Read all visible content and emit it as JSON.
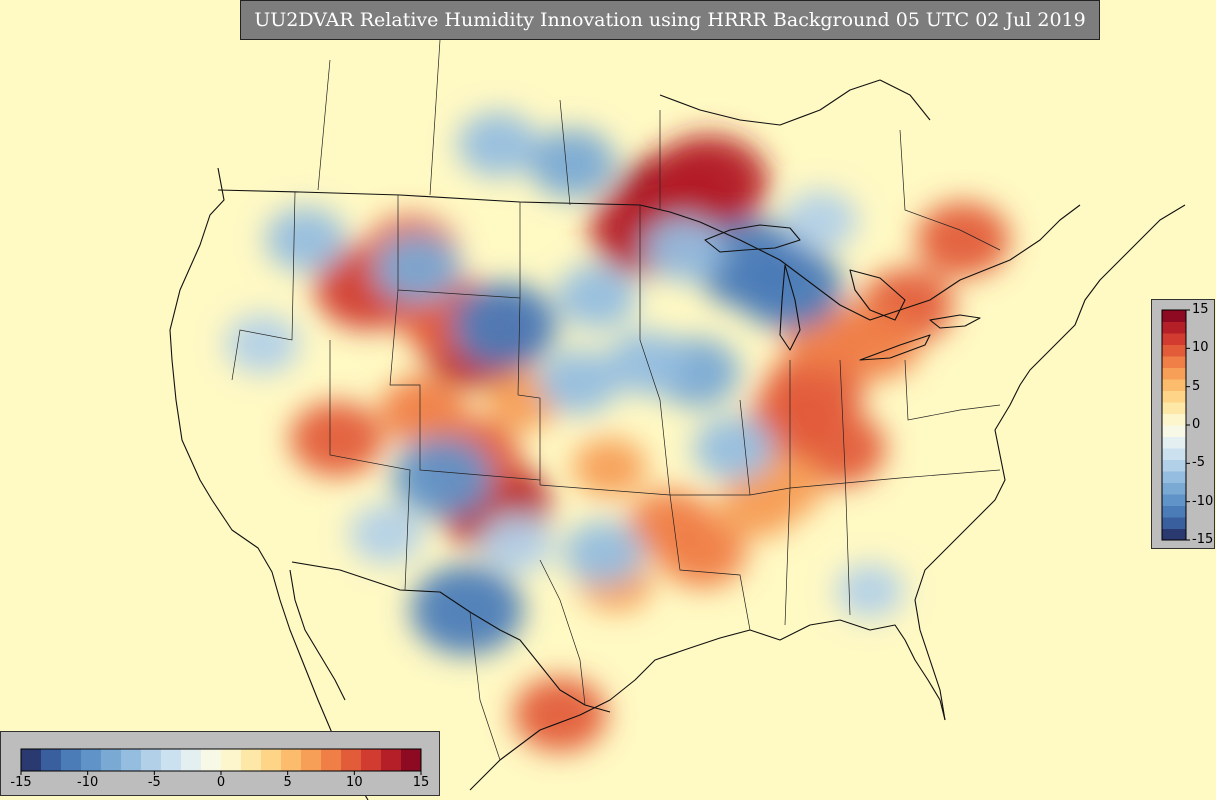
{
  "title": "UU2DVAR Relative Humidity Innovation using HRRR Background 05 UTC 02 Jul 2019",
  "colorbar": {
    "min": -15,
    "max": 15,
    "tick_values": [
      -15,
      -10,
      -5,
      0,
      5,
      10,
      15
    ],
    "tick_labels": [
      "-15",
      "-10",
      "-5",
      "0",
      "5",
      "10",
      "15"
    ],
    "colors": [
      "#2a3970",
      "#3a5f9e",
      "#4c7cb8",
      "#6094c8",
      "#7aa9d4",
      "#95bddf",
      "#b2d0e8",
      "#cce1ef",
      "#e4eff2",
      "#f7f9e6",
      "#fdf6cc",
      "#fde8a8",
      "#fdd488",
      "#fbbc6d",
      "#f79e57",
      "#f07e47",
      "#e35c3a",
      "#d13b30",
      "#b51f28",
      "#8e0a22"
    ]
  },
  "anomalies": [
    {
      "lon": -90.5,
      "lat": 49.5,
      "value": 14
    },
    {
      "lon": -88.0,
      "lat": 50.5,
      "value": 13
    },
    {
      "lon": -93.0,
      "lat": 48.0,
      "value": 12
    },
    {
      "lon": -106.5,
      "lat": 42.2,
      "value": 13
    },
    {
      "lon": -109.0,
      "lat": 43.5,
      "value": 10
    },
    {
      "lon": -115.5,
      "lat": 45.0,
      "value": 11
    },
    {
      "lon": -112.0,
      "lat": 46.8,
      "value": 9
    },
    {
      "lon": -105.3,
      "lat": 33.5,
      "value": 12
    },
    {
      "lon": -107.2,
      "lat": 36.0,
      "value": 10
    },
    {
      "lon": -118.0,
      "lat": 37.0,
      "value": 9
    },
    {
      "lon": -79.5,
      "lat": 39.5,
      "value": 10
    },
    {
      "lon": -81.0,
      "lat": 38.0,
      "value": 9
    },
    {
      "lon": -77.5,
      "lat": 36.5,
      "value": 9
    },
    {
      "lon": -88.5,
      "lat": 31.0,
      "value": 8
    },
    {
      "lon": -91.0,
      "lat": 32.5,
      "value": 8
    },
    {
      "lon": -72.0,
      "lat": 44.0,
      "value": 9
    },
    {
      "lon": -74.5,
      "lat": 42.0,
      "value": 8
    },
    {
      "lon": -67.5,
      "lat": 47.5,
      "value": 9
    },
    {
      "lon": -100.0,
      "lat": 22.5,
      "value": 9
    },
    {
      "lon": -84.0,
      "lat": 33.5,
      "value": 7
    },
    {
      "lon": -82.0,
      "lat": 34.5,
      "value": 7
    },
    {
      "lon": -96.0,
      "lat": 35.5,
      "value": 6
    },
    {
      "lon": -103.0,
      "lat": 39.0,
      "value": 6
    },
    {
      "lon": -111.0,
      "lat": 38.5,
      "value": 8
    },
    {
      "lon": -95.5,
      "lat": 29.5,
      "value": 6
    },
    {
      "lon": -78.5,
      "lat": 42.5,
      "value": 8
    },
    {
      "lon": -104.5,
      "lat": 43.0,
      "value": -11
    },
    {
      "lon": -109.5,
      "lat": 35.0,
      "value": -10
    },
    {
      "lon": -107.5,
      "lat": 28.0,
      "value": -12
    },
    {
      "lon": -84.5,
      "lat": 46.2,
      "value": -12
    },
    {
      "lon": -81.5,
      "lat": 45.0,
      "value": -11
    },
    {
      "lon": -89.0,
      "lat": 40.5,
      "value": -8
    },
    {
      "lon": -93.0,
      "lat": 41.0,
      "value": -7
    },
    {
      "lon": -98.5,
      "lat": 40.0,
      "value": -7
    },
    {
      "lon": -97.0,
      "lat": 44.5,
      "value": -7
    },
    {
      "lon": -111.5,
      "lat": 46.0,
      "value": -8
    },
    {
      "lon": -120.5,
      "lat": 47.5,
      "value": -7
    },
    {
      "lon": -99.0,
      "lat": 51.5,
      "value": -8
    },
    {
      "lon": -105.0,
      "lat": 52.5,
      "value": -7
    },
    {
      "lon": -90.0,
      "lat": 47.0,
      "value": -7
    },
    {
      "lon": -86.0,
      "lat": 36.5,
      "value": -7
    },
    {
      "lon": -96.5,
      "lat": 31.0,
      "value": -7
    },
    {
      "lon": -103.5,
      "lat": 31.5,
      "value": -6
    },
    {
      "lon": -79.0,
      "lat": 48.5,
      "value": -6
    },
    {
      "lon": -114.0,
      "lat": 32.0,
      "value": -6
    },
    {
      "lon": -75.0,
      "lat": 29.0,
      "value": -5
    },
    {
      "lon": -124.0,
      "lat": 42.0,
      "value": -6
    }
  ]
}
